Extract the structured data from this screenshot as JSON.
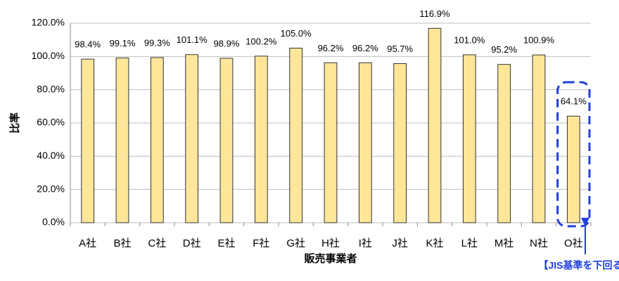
{
  "chart_data": {
    "type": "bar",
    "x_label": "販売事業者",
    "y_label": "比率",
    "categories": [
      "A社",
      "B社",
      "C社",
      "D社",
      "E社",
      "F社",
      "G社",
      "H社",
      "I社",
      "J社",
      "K社",
      "L社",
      "M社",
      "N社",
      "O社"
    ],
    "values": [
      98.4,
      99.1,
      99.3,
      101.1,
      98.9,
      100.2,
      105.0,
      96.2,
      96.2,
      95.7,
      116.9,
      101.0,
      95.2,
      100.9,
      64.1
    ],
    "value_labels": [
      "98.4%",
      "99.1%",
      "99.3%",
      "101.1%",
      "98.9%",
      "100.2%",
      "105.0%",
      "96.2%",
      "96.2%",
      "95.7%",
      "116.9%",
      "101.0%",
      "95.2%",
      "100.9%",
      "64.1%"
    ],
    "color": "#ffe699",
    "ylim": [
      0,
      120
    ],
    "yticks": [
      {
        "value": 0,
        "label": "0.0%"
      },
      {
        "value": 20,
        "label": "20.0%"
      },
      {
        "value": 40,
        "label": "40.0%"
      },
      {
        "value": 60,
        "label": "60.0%"
      },
      {
        "value": 80,
        "label": "80.0%"
      },
      {
        "value": 100,
        "label": "100.0%"
      },
      {
        "value": 120,
        "label": "120.0%"
      }
    ],
    "grid": true,
    "annotation": "【JIS基準を下回る】"
  }
}
